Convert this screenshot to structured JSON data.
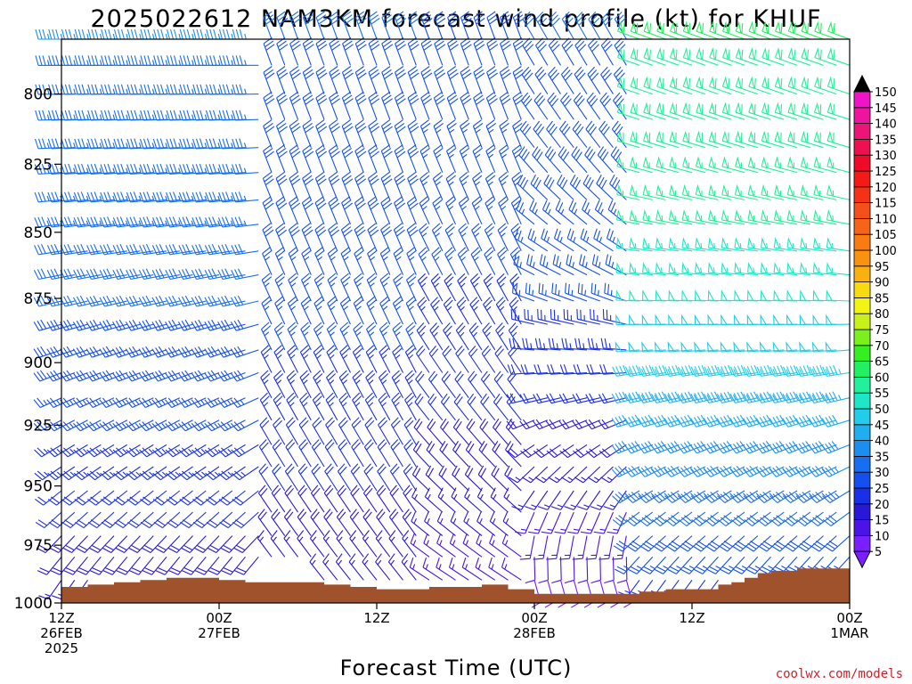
{
  "chart_data": {
    "type": "wind_profile",
    "title": "2025022612 NAM3KM forecast wind profile (kt) for KHUF",
    "xlabel": "Forecast Time (UTC)",
    "ylabel": "",
    "y_ticks": [
      800,
      825,
      850,
      875,
      900,
      925,
      950,
      975,
      1000
    ],
    "ylim": [
      1000,
      781
    ],
    "y_scale": "pressure (hPa), inverted",
    "x_ticks": [
      {
        "t": 0,
        "line1": "12Z",
        "line2": "26FEB",
        "line3": "2025"
      },
      {
        "t": 12,
        "line1": "00Z",
        "line2": "27FEB",
        "line3": ""
      },
      {
        "t": 24,
        "line1": "12Z",
        "line2": "",
        "line3": ""
      },
      {
        "t": 36,
        "line1": "00Z",
        "line2": "28FEB",
        "line3": ""
      },
      {
        "t": 48,
        "line1": "12Z",
        "line2": "",
        "line3": ""
      },
      {
        "t": 60,
        "line1": "00Z",
        "line2": "1MAR",
        "line3": ""
      }
    ],
    "xlim": [
      0,
      60
    ],
    "x_units": "forecast hour",
    "wind_levels_hpa": [
      781,
      790,
      800,
      809,
      819,
      828,
      838,
      847,
      857,
      866,
      876,
      885,
      895,
      904,
      914,
      923,
      933,
      942,
      952,
      961,
      971,
      980,
      990
    ],
    "wind_times_h": [
      0,
      1,
      2,
      3,
      4,
      5,
      6,
      7,
      8,
      9,
      10,
      11,
      12,
      13,
      14,
      15,
      16,
      17,
      18,
      19,
      20,
      21,
      22,
      23,
      24,
      25,
      26,
      27,
      28,
      29,
      30,
      31,
      32,
      33,
      34,
      35,
      36,
      37,
      38,
      39,
      40,
      41,
      42,
      43,
      44,
      45,
      46,
      47,
      48,
      49,
      50,
      51,
      52,
      53,
      54,
      55,
      56,
      57,
      58,
      59,
      60
    ],
    "wind_field": {
      "description": "speed (kt) and direction (deg from) vary by time and pressure",
      "phases": [
        {
          "t_start": 0,
          "t_end": 16,
          "dir_upper": 270,
          "dir_lower": 210,
          "speed_upper": 35,
          "speed_lower": 15
        },
        {
          "t_start": 16,
          "t_end": 28,
          "dir_upper": 340,
          "dir_lower": 320,
          "speed_upper": 30,
          "speed_lower": 15
        },
        {
          "t_start": 28,
          "t_end": 36,
          "dir_upper": 340,
          "dir_lower": 300,
          "speed_upper": 28,
          "speed_lower": 12
        },
        {
          "t_start": 36,
          "t_end": 44,
          "dir_upper": 330,
          "dir_lower": 150,
          "speed_upper": 30,
          "speed_lower": 8
        },
        {
          "t_start": 44,
          "t_end": 60,
          "dir_upper": 290,
          "dir_lower": 210,
          "speed_upper": 60,
          "speed_lower": 20
        }
      ]
    },
    "surface_pressure_hpa": [
      [
        0,
        993
      ],
      [
        2,
        992
      ],
      [
        4,
        991
      ],
      [
        6,
        990
      ],
      [
        8,
        989
      ],
      [
        10,
        989
      ],
      [
        12,
        990
      ],
      [
        14,
        991
      ],
      [
        16,
        991
      ],
      [
        18,
        991
      ],
      [
        20,
        992
      ],
      [
        22,
        993
      ],
      [
        24,
        994
      ],
      [
        26,
        994
      ],
      [
        28,
        993
      ],
      [
        30,
        993
      ],
      [
        32,
        992
      ],
      [
        34,
        994
      ],
      [
        36,
        996
      ],
      [
        38,
        996
      ],
      [
        40,
        996
      ],
      [
        42,
        996
      ],
      [
        44,
        995
      ],
      [
        46,
        994
      ],
      [
        48,
        994
      ],
      [
        50,
        992
      ],
      [
        51,
        991
      ],
      [
        52,
        989
      ],
      [
        53,
        987
      ],
      [
        54,
        986
      ],
      [
        56,
        985
      ],
      [
        58,
        985
      ],
      [
        60,
        985
      ]
    ],
    "colorbar": {
      "label_values": [
        5,
        10,
        15,
        20,
        25,
        30,
        35,
        40,
        45,
        50,
        55,
        60,
        65,
        70,
        75,
        80,
        85,
        90,
        95,
        100,
        105,
        110,
        115,
        120,
        125,
        130,
        135,
        140,
        145,
        150
      ],
      "colors": [
        "#7a1fff",
        "#4a14e8",
        "#2a18d8",
        "#1a30e6",
        "#1450f0",
        "#186ef0",
        "#1c8ef0",
        "#20aef0",
        "#22ccea",
        "#20e6c8",
        "#22f09a",
        "#22f060",
        "#34f020",
        "#7af01c",
        "#c8f01a",
        "#f4f414",
        "#f8da12",
        "#fab010",
        "#f89210",
        "#f87c10",
        "#f6641a",
        "#f4501a",
        "#f43218",
        "#f41a18",
        "#f00a2a",
        "#ee1050",
        "#ec1478",
        "#ee14a0",
        "#f014c8",
        "#ec14e8"
      ],
      "over_color": "#000000",
      "under_color": "#7a1fff"
    }
  },
  "terrain_color": "#a0522d",
  "credit": "coolwx.com/models"
}
